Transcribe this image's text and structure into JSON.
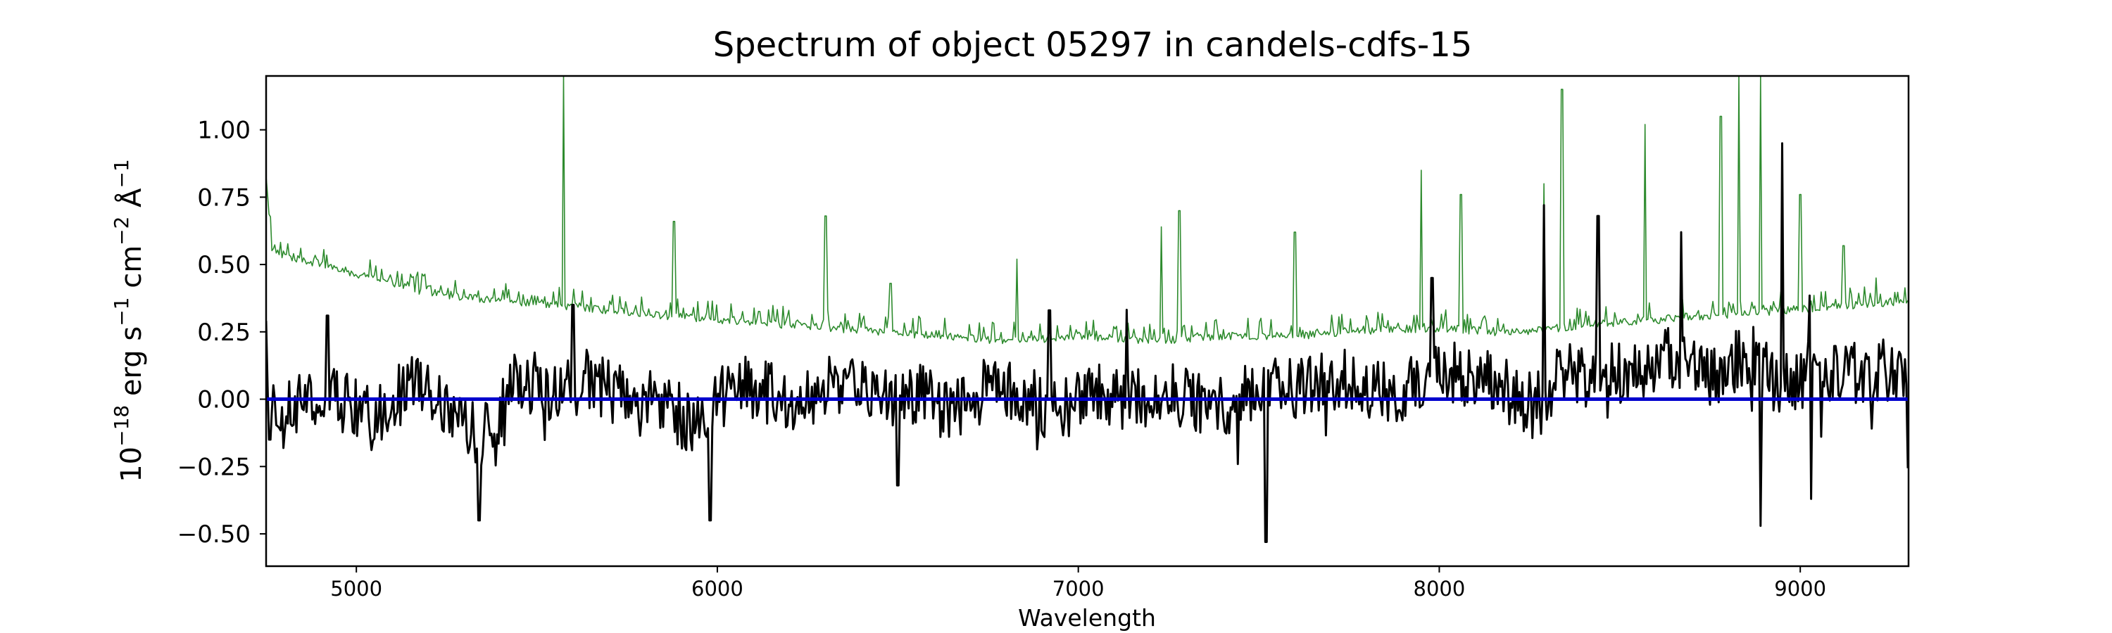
{
  "chart_data": {
    "type": "line",
    "title": "Spectrum of object 05297 in candels-cdfs-15",
    "xlabel": "Wavelength",
    "ylabel": {
      "base": "10",
      "exp": "−18",
      "unit1": " erg s",
      "exp1": "−1",
      "unit2": " cm",
      "exp2": "−2",
      "unit3": " Å",
      "exp3": "−1"
    },
    "xlim": [
      4750,
      9300
    ],
    "ylim": [
      -0.62,
      1.2
    ],
    "x_ticks": [
      5000,
      6000,
      7000,
      8000,
      9000
    ],
    "x_tick_labels": [
      "5000",
      "6000",
      "7000",
      "8000",
      "9000"
    ],
    "y_ticks": [
      -0.5,
      -0.25,
      0.0,
      0.25,
      0.5,
      0.75,
      1.0
    ],
    "y_tick_labels": [
      "−0.50",
      "−0.25",
      "0.00",
      "0.25",
      "0.50",
      "0.75",
      "1.00"
    ],
    "grid": false,
    "colors": {
      "flux": "#000000",
      "error": "#2e8b2e",
      "zero": "#0000cd"
    },
    "series": [
      {
        "role": "flux",
        "x": [
          4750,
          4850,
          4950,
          5050,
          5150,
          5250,
          5350,
          5450,
          5550,
          5650,
          5750,
          5850,
          5950,
          6050,
          6150,
          6250,
          6350,
          6450,
          6550,
          6650,
          6750,
          6850,
          6950,
          7050,
          7150,
          7250,
          7350,
          7450,
          7550,
          7650,
          7750,
          7850,
          7950,
          8050,
          8150,
          8250,
          8350,
          8450,
          8550,
          8650,
          8750,
          8850,
          8950,
          9050,
          9150,
          9290
        ],
        "y": [
          -0.05,
          0.02,
          0.0,
          -0.08,
          0.05,
          -0.02,
          -0.15,
          0.08,
          0.03,
          0.05,
          0.01,
          -0.03,
          -0.1,
          0.06,
          0.02,
          0.0,
          0.07,
          -0.02,
          0.03,
          -0.06,
          0.04,
          0.0,
          -0.04,
          0.02,
          0.0,
          0.03,
          -0.02,
          0.0,
          0.04,
          0.05,
          0.08,
          0.02,
          0.06,
          0.1,
          0.06,
          -0.02,
          0.1,
          0.08,
          0.12,
          0.15,
          0.06,
          0.18,
          0.04,
          0.12,
          0.1,
          0.12
        ],
        "peaks": [
          {
            "x": 4760,
            "y": -0.15
          },
          {
            "x": 4920,
            "y": 0.31
          },
          {
            "x": 5340,
            "y": -0.45
          },
          {
            "x": 5600,
            "y": 0.35
          },
          {
            "x": 5980,
            "y": -0.45
          },
          {
            "x": 6500,
            "y": -0.32
          },
          {
            "x": 6920,
            "y": 0.33
          },
          {
            "x": 7520,
            "y": -0.53
          },
          {
            "x": 7980,
            "y": 0.45
          },
          {
            "x": 8290,
            "y": 0.72
          },
          {
            "x": 8440,
            "y": 0.68
          },
          {
            "x": 8670,
            "y": 0.62
          },
          {
            "x": 8890,
            "y": -0.47
          },
          {
            "x": 8950,
            "y": 0.95
          },
          {
            "x": 9030,
            "y": -0.37
          }
        ],
        "noise_amplitude": 0.12
      },
      {
        "role": "error",
        "x": [
          4750,
          4765,
          4800,
          5000,
          5200,
          5400,
          5600,
          5800,
          6000,
          6200,
          6400,
          6600,
          6800,
          7000,
          7200,
          7400,
          7600,
          7800,
          8000,
          8200,
          8400,
          8600,
          8800,
          9000,
          9290
        ],
        "y": [
          0.8,
          0.55,
          0.52,
          0.45,
          0.38,
          0.35,
          0.33,
          0.3,
          0.28,
          0.26,
          0.24,
          0.22,
          0.2,
          0.22,
          0.2,
          0.22,
          0.22,
          0.24,
          0.25,
          0.23,
          0.26,
          0.28,
          0.3,
          0.32,
          0.35
        ],
        "peaks": [
          {
            "x": 5200,
            "y": 0.42
          },
          {
            "x": 5575,
            "y": 1.2
          },
          {
            "x": 5880,
            "y": 0.66
          },
          {
            "x": 6300,
            "y": 0.68
          },
          {
            "x": 6480,
            "y": 0.43
          },
          {
            "x": 6830,
            "y": 0.52
          },
          {
            "x": 7230,
            "y": 0.64
          },
          {
            "x": 7280,
            "y": 0.7
          },
          {
            "x": 7600,
            "y": 0.62
          },
          {
            "x": 7950,
            "y": 0.85
          },
          {
            "x": 8060,
            "y": 0.76
          },
          {
            "x": 8290,
            "y": 0.8
          },
          {
            "x": 8340,
            "y": 1.15
          },
          {
            "x": 8570,
            "y": 1.02
          },
          {
            "x": 8780,
            "y": 1.05
          },
          {
            "x": 8830,
            "y": 1.2
          },
          {
            "x": 8890,
            "y": 1.2
          },
          {
            "x": 9000,
            "y": 0.76
          },
          {
            "x": 9120,
            "y": 0.57
          },
          {
            "x": 9210,
            "y": 0.45
          }
        ],
        "noise_amplitude": 0.06
      },
      {
        "role": "zero",
        "x": [
          4750,
          9300
        ],
        "y": [
          0.0,
          0.0
        ]
      }
    ]
  }
}
